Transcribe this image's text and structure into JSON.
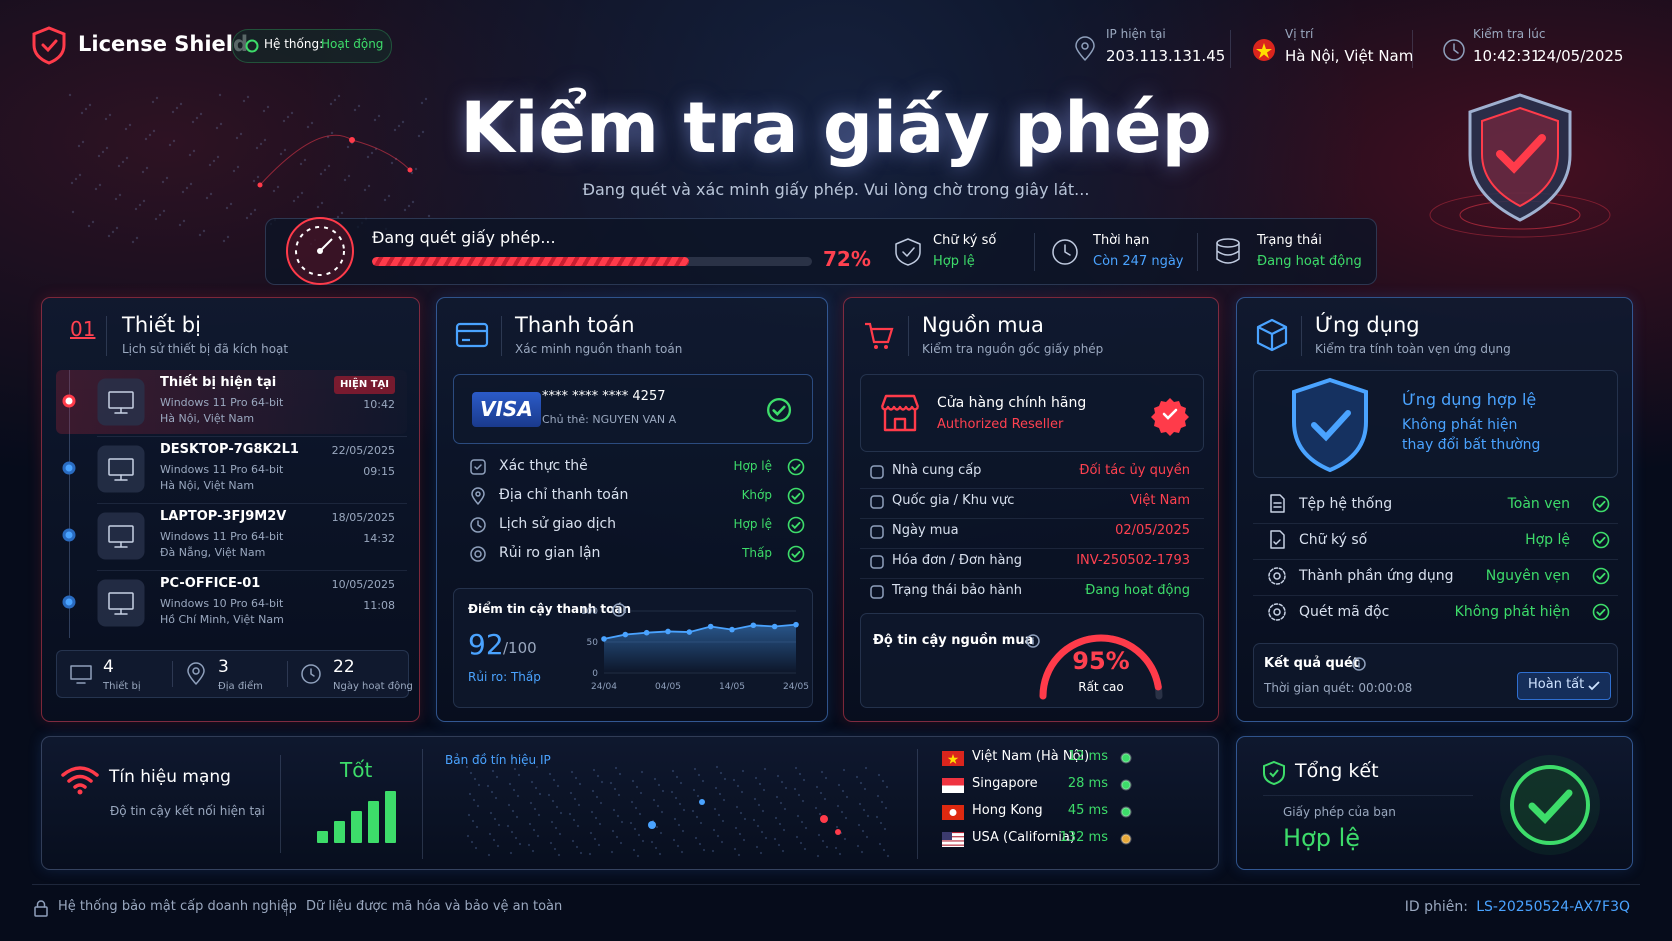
{
  "header": {
    "brand": "License Shield",
    "status_label": "Hệ thống:",
    "status_value": "Hoạt động",
    "ip_label": "IP hiện tại",
    "ip": "203.113.131.45",
    "location_label": "Vị trí",
    "location": "Hà Nội, Việt Nam",
    "time_label": "Kiểm tra lúc",
    "time": "10:42:31",
    "date": "24/05/2025"
  },
  "hero": {
    "title": "Kiểm tra giấy phép",
    "subtitle": "Đang quét và xác minh giấy phép. Vui lòng chờ trong giây lát...",
    "scan_label": "Đang quét giấy phép...",
    "progress": 72,
    "progress_label": "72%",
    "status": [
      {
        "label": "Chữ ký số",
        "value": "Hợp lệ"
      },
      {
        "label": "Thời hạn",
        "value": "Còn 247 ngày"
      },
      {
        "label": "Trạng thái",
        "value": "Đang hoạt động"
      }
    ]
  },
  "devices": {
    "number": "01",
    "title": "Thiết bị",
    "subtitle": "Lịch sử thiết bị đã kích hoạt",
    "items": [
      {
        "name": "Thiết bị hiện tại",
        "os": "Windows 11 Pro 64-bit",
        "location": "Hà Nội, Việt Nam",
        "badge": "HIỆN TẠI",
        "time": "10:42"
      },
      {
        "name": "DESKTOP-7G8K2L1",
        "os": "Windows 11 Pro 64-bit",
        "location": "Hà Nội, Việt Nam",
        "date": "22/05/2025",
        "time": "09:15"
      },
      {
        "name": "LAPTOP-3FJ9M2V",
        "os": "Windows 11 Pro 64-bit",
        "location": "Đà Nẵng, Việt Nam",
        "date": "18/05/2025",
        "time": "14:32"
      },
      {
        "name": "PC-OFFICE-01",
        "os": "Windows 10 Pro 64-bit",
        "location": "Hồ Chí Minh, Việt Nam",
        "date": "10/05/2025",
        "time": "11:08"
      }
    ],
    "stats": [
      {
        "value": "4",
        "label": "Thiết bị"
      },
      {
        "value": "3",
        "label": "Địa điểm"
      },
      {
        "value": "22",
        "label": "Ngày hoạt động"
      }
    ]
  },
  "payment": {
    "title": "Thanh toán",
    "subtitle": "Xác minh nguồn thanh toán",
    "card_brand": "VISA",
    "card_number": "**** **** **** 4257",
    "card_holder": "Chủ thẻ: NGUYEN VAN A",
    "checks": [
      {
        "label": "Xác thực thẻ",
        "value": "Hợp lệ"
      },
      {
        "label": "Địa chỉ thanh toán",
        "value": "Khớp"
      },
      {
        "label": "Lịch sử giao dịch",
        "value": "Hợp lệ"
      },
      {
        "label": "Rủi ro gian lận",
        "value": "Thấp"
      }
    ],
    "score_title": "Điểm tin cậy thanh toán",
    "score": "92",
    "score_max": "/100",
    "risk": "Rủi ro: Thấp",
    "chart": {
      "type": "line",
      "categories": [
        "24/04",
        null,
        null,
        "04/05",
        null,
        null,
        "14/05",
        null,
        null,
        "24/05"
      ],
      "values": [
        55,
        62,
        65,
        67,
        66,
        75,
        70,
        77,
        75,
        78
      ],
      "ylim": [
        0,
        100
      ],
      "yticks": [
        0,
        50,
        100
      ],
      "color": "#4aa3ff"
    }
  },
  "source": {
    "title": "Nguồn mua",
    "subtitle": "Kiểm tra nguồn gốc giấy phép",
    "store": "Cửa hàng chính hãng",
    "store_sub": "Authorized Reseller",
    "rows": [
      {
        "label": "Nhà cung cấp",
        "value": "Đối tác ủy quyền"
      },
      {
        "label": "Quốc gia / Khu vực",
        "value": "Việt Nam"
      },
      {
        "label": "Ngày mua",
        "value": "02/05/2025"
      },
      {
        "label": "Hóa đơn / Đơn hàng",
        "value": "INV-250502-1793"
      },
      {
        "label": "Trạng thái bảo hành",
        "value": "Đang hoạt động"
      }
    ],
    "trust_title": "Độ tin cậy nguồn mua",
    "trust": 95,
    "trust_label": "95%",
    "trust_level": "Rất cao"
  },
  "app": {
    "title": "Ứng dụng",
    "subtitle": "Kiểm tra tính toàn vẹn ứng dụng",
    "valid_title": "Ứng dụng hợp lệ",
    "valid_line1": "Không phát hiện",
    "valid_line2": "thay đổi bất thường",
    "checks": [
      {
        "label": "Tệp hệ thống",
        "value": "Toàn vẹn"
      },
      {
        "label": "Chữ ký số",
        "value": "Hợp lệ"
      },
      {
        "label": "Thành phần ứng dụng",
        "value": "Nguyên vẹn"
      },
      {
        "label": "Quét mã độc",
        "value": "Không phát hiện"
      }
    ],
    "result_title": "Kết quả quét",
    "result_time": "Thời gian quét: 00:00:08",
    "button": "Hoàn tất"
  },
  "network": {
    "title": "Tín hiệu mạng",
    "subtitle": "Độ tin cậy kết nối hiện tại",
    "quality": "Tốt",
    "map_title": "Bản đồ tín hiệu IP",
    "servers": [
      {
        "name": "Việt Nam (Hà Nội)",
        "latency": "12 ms"
      },
      {
        "name": "Singapore",
        "latency": "28 ms"
      },
      {
        "name": "Hong Kong",
        "latency": "45 ms"
      },
      {
        "name": "USA (California)",
        "latency": "132 ms"
      }
    ]
  },
  "summary": {
    "title": "Tổng kết",
    "text": "Giấy phép của bạn",
    "result": "Hợp lệ"
  },
  "footer": {
    "left1": "Hệ thống bảo mật cấp doanh nghiệp",
    "left2": "Dữ liệu được mã hóa và bảo vệ an toàn",
    "session_label": "ID phiên:",
    "session": "LS-20250524-AX7F3Q"
  }
}
